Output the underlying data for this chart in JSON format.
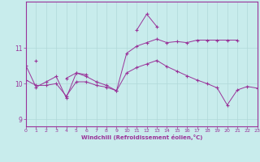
{
  "xlabel": "Windchill (Refroidissement éolien,°C)",
  "bg_color": "#c8ecec",
  "grid_color": "#b0d8d8",
  "line_color": "#993399",
  "hours": [
    0,
    1,
    2,
    3,
    4,
    5,
    6,
    7,
    8,
    9,
    10,
    11,
    12,
    13,
    14,
    15,
    16,
    17,
    18,
    19,
    20,
    21,
    22,
    23
  ],
  "series1": [
    10.5,
    9.9,
    10.05,
    10.2,
    9.6,
    10.3,
    10.2,
    10.05,
    9.95,
    9.8,
    10.85,
    11.05,
    11.15,
    11.25,
    11.15,
    11.18,
    11.15,
    11.22,
    11.22,
    11.22,
    11.22,
    11.22,
    null,
    null
  ],
  "series2": [
    null,
    10.65,
    null,
    null,
    10.15,
    10.3,
    10.25,
    null,
    null,
    null,
    null,
    null,
    null,
    null,
    null,
    null,
    null,
    null,
    null,
    null,
    null,
    null,
    null,
    null
  ],
  "series3": [
    null,
    null,
    null,
    null,
    null,
    null,
    null,
    null,
    null,
    null,
    null,
    11.5,
    11.95,
    11.6,
    null,
    null,
    null,
    null,
    null,
    null,
    null,
    null,
    null,
    null
  ],
  "series4": [
    10.1,
    9.95,
    9.95,
    10.0,
    9.65,
    10.05,
    10.05,
    9.95,
    9.9,
    9.8,
    10.3,
    10.45,
    10.55,
    10.65,
    10.48,
    10.35,
    10.22,
    10.1,
    10.0,
    9.88,
    9.4,
    9.82,
    9.92,
    9.87
  ],
  "xlim": [
    0,
    23
  ],
  "ylim": [
    8.8,
    12.3
  ],
  "yticks": [
    9,
    10,
    11
  ],
  "xticks": [
    0,
    1,
    2,
    3,
    4,
    5,
    6,
    7,
    8,
    9,
    10,
    11,
    12,
    13,
    14,
    15,
    16,
    17,
    18,
    19,
    20,
    21,
    22,
    23
  ]
}
